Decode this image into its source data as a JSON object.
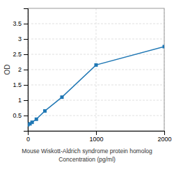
{
  "chart_data": {
    "type": "line",
    "xlabel": [
      "Mouse Wiskott-Aldrich syndrome protein homolog",
      "Concentration (pg/ml)"
    ],
    "ylabel": "OD",
    "x": [
      0,
      31.25,
      62.5,
      125,
      250,
      500,
      1000,
      2000
    ],
    "values": [
      0.2,
      0.23,
      0.28,
      0.38,
      0.65,
      1.1,
      2.15,
      2.75
    ],
    "marker": "square",
    "xlim": [
      0,
      2000
    ],
    "ylim": [
      0.0,
      4.0
    ],
    "xticks": [
      0,
      1000,
      2000
    ],
    "yticks": [
      0.5,
      1,
      1.5,
      2,
      2.5,
      3,
      3.5
    ],
    "grid": true
  }
}
